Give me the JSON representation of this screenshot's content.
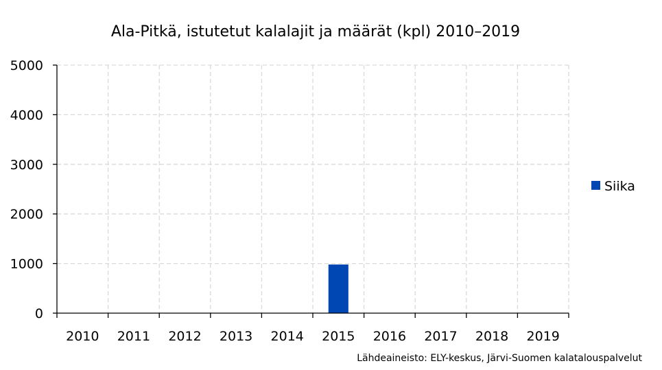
{
  "chart_data": {
    "type": "bar",
    "title": "Ala-Pitkä, istutetut kalalajit ja määrät (kpl) 2010–2019",
    "categories": [
      "2010",
      "2011",
      "2012",
      "2013",
      "2014",
      "2015",
      "2016",
      "2017",
      "2018",
      "2019"
    ],
    "series": [
      {
        "name": "Siika",
        "values": [
          0,
          0,
          0,
          0,
          0,
          980,
          0,
          0,
          0,
          0
        ],
        "color": "#0047b3"
      }
    ],
    "ylim": [
      0,
      5000
    ],
    "yticks": [
      0,
      1000,
      2000,
      3000,
      4000,
      5000
    ],
    "xlabel": "",
    "ylabel": "",
    "grid": true,
    "legend_position": "right",
    "source": "Lähdeaineisto: ELY-keskus, Järvi-Suomen kalatalouspalvelut"
  }
}
